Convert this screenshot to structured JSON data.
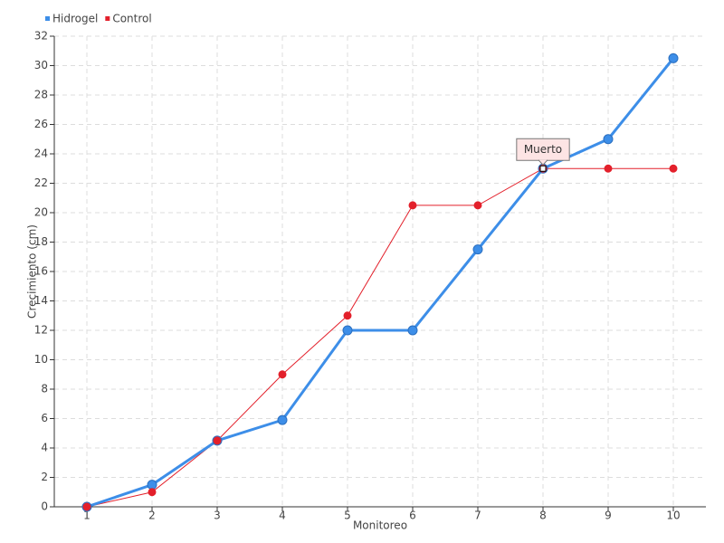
{
  "chart_data": {
    "type": "line",
    "x_label": "Monitoreo",
    "y_label": "Crecimiento (cm)",
    "x": [
      1,
      2,
      3,
      4,
      5,
      6,
      7,
      8,
      9,
      10
    ],
    "series": [
      {
        "name": "Hidrogel",
        "color": "#3d8ee8",
        "values": [
          0,
          1.5,
          4.5,
          5.9,
          12,
          12,
          17.5,
          23,
          25,
          30.5
        ]
      },
      {
        "name": "Control",
        "color": "#e3202b",
        "values": [
          0,
          1,
          4.5,
          9,
          13,
          20.5,
          20.5,
          23,
          23,
          23
        ]
      }
    ],
    "xlim": [
      0.5,
      10.5
    ],
    "xticks": [
      1,
      2,
      3,
      4,
      5,
      6,
      7,
      8,
      9,
      10
    ],
    "ylim": [
      0,
      32
    ],
    "yticks": [
      0,
      2,
      4,
      6,
      8,
      10,
      12,
      14,
      16,
      18,
      20,
      22,
      24,
      26,
      28,
      30,
      32
    ],
    "grid": true,
    "legend": "top-left",
    "annotations": [
      {
        "text": "Muerto",
        "x": 8,
        "y": 23
      }
    ]
  }
}
